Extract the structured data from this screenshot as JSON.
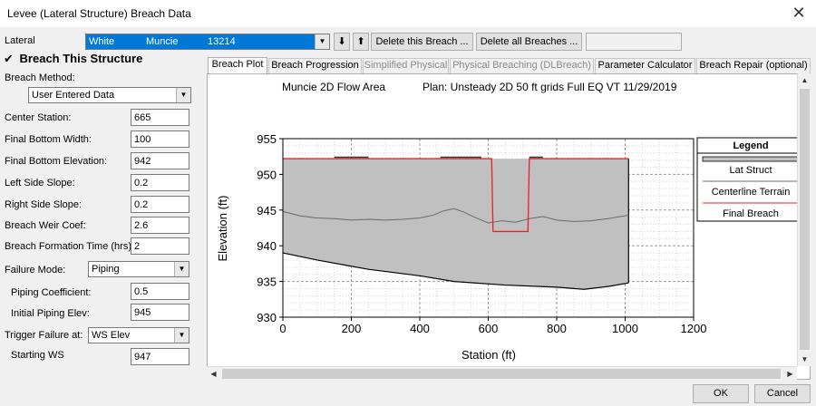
{
  "window": {
    "title": "Levee (Lateral Structure) Breach Data",
    "close_glyph": "✕"
  },
  "lateral": {
    "label": "Lateral",
    "river": "White",
    "reach": "Muncie",
    "station": "13214",
    "down_glyph": "⬇",
    "up_glyph": "⬆",
    "delete_this": "Delete this Breach ...",
    "delete_all": "Delete all Breaches ..."
  },
  "breach": {
    "checkbox_glyph": "✔",
    "checkbox_label": "Breach This Structure",
    "method_label": "Breach Method:",
    "method_value": "User Entered Data",
    "fields": [
      {
        "label": "Center Station:",
        "value": "665"
      },
      {
        "label": "Final Bottom Width:",
        "value": "100"
      },
      {
        "label": "Final Bottom Elevation:",
        "value": "942"
      },
      {
        "label": "Left Side Slope:",
        "value": "0.2"
      },
      {
        "label": "Right Side Slope:",
        "value": "0.2"
      },
      {
        "label": "Breach Weir Coef:",
        "value": "2.6"
      },
      {
        "label": "Breach Formation Time (hrs)",
        "value": "2"
      }
    ],
    "failure_mode_label": "Failure Mode:",
    "failure_mode_value": "Piping",
    "piping_coef_label": "Piping Coefficient:",
    "piping_coef_value": "0.5",
    "initial_piping_label": "Initial Piping Elev:",
    "initial_piping_value": "945",
    "trigger_label": "Trigger Failure at:",
    "trigger_value": "WS Elev",
    "starting_ws_label": "Starting WS",
    "starting_ws_value": "947"
  },
  "tabs": [
    {
      "label": "Breach Plot",
      "state": "active"
    },
    {
      "label": "Breach Progression",
      "state": "normal"
    },
    {
      "label": "Simplified Physical",
      "state": "disabled"
    },
    {
      "label": "Physical Breaching (DLBreach)",
      "state": "disabled"
    },
    {
      "label": "Parameter Calculator",
      "state": "normal"
    },
    {
      "label": "Breach Repair (optional)",
      "state": "normal"
    }
  ],
  "buttons": {
    "ok": "OK",
    "cancel": "Cancel"
  },
  "icons": {
    "dropdown": "chevron-down-icon",
    "arrow_up": "arrow-up-icon",
    "arrow_down": "arrow-down-icon",
    "arrow_left": "arrow-left-icon",
    "arrow_right": "arrow-right-icon"
  },
  "colors": {
    "selection": "#0078d7",
    "lat_struct_fill": "#c0c0c0",
    "final_breach": "#e8202a",
    "terrain": "#6a6a6a"
  },
  "chart_data": {
    "type": "area",
    "header_left": "Muncie 2D Flow Area",
    "header_right": "Plan: Unsteady  2D 50 ft grids Full EQ VT     11/29/2019",
    "xlabel": "Station (ft)",
    "ylabel": "Elevation (ft)",
    "xlim": [
      0,
      1200
    ],
    "ylim": [
      930,
      955
    ],
    "x_ticks": [
      0,
      200,
      400,
      600,
      800,
      1000,
      1200
    ],
    "y_ticks": [
      930,
      935,
      940,
      945,
      950,
      955
    ],
    "grid": true,
    "legend_title": "Legend",
    "legend_position": "right",
    "series": [
      {
        "name": "Lat Struct",
        "top": [
          [
            0,
            952.2
          ],
          [
            1010,
            952.2
          ]
        ],
        "bottom": [
          [
            0,
            939
          ],
          [
            100,
            938
          ],
          [
            250,
            936.7
          ],
          [
            400,
            935.8
          ],
          [
            500,
            935
          ],
          [
            650,
            934.5
          ],
          [
            800,
            934.2
          ],
          [
            880,
            933.9
          ],
          [
            950,
            934.3
          ],
          [
            1010,
            934.8
          ]
        ]
      },
      {
        "name": "Centerline Terrain",
        "points": [
          [
            0,
            944.8
          ],
          [
            50,
            944.2
          ],
          [
            100,
            943.9
          ],
          [
            150,
            943.8
          ],
          [
            200,
            943.6
          ],
          [
            250,
            943.7
          ],
          [
            300,
            943.6
          ],
          [
            350,
            943.7
          ],
          [
            400,
            943.9
          ],
          [
            440,
            944.3
          ],
          [
            470,
            944.9
          ],
          [
            500,
            945.2
          ],
          [
            530,
            944.7
          ],
          [
            560,
            944.0
          ],
          [
            600,
            943.2
          ],
          [
            640,
            943.5
          ],
          [
            680,
            943.3
          ],
          [
            720,
            943.8
          ],
          [
            760,
            944.1
          ],
          [
            800,
            943.6
          ],
          [
            850,
            943.4
          ],
          [
            900,
            943.5
          ],
          [
            950,
            943.8
          ],
          [
            1000,
            944.2
          ],
          [
            1010,
            944.3
          ]
        ]
      },
      {
        "name": "Final Breach",
        "points": [
          [
            0,
            952.2
          ],
          [
            610,
            952.2
          ],
          [
            614,
            942
          ],
          [
            716,
            942
          ],
          [
            720,
            952.2
          ],
          [
            1010,
            952.2
          ]
        ]
      }
    ],
    "crest_marks": [
      [
        150,
        250,
        952.4
      ],
      [
        460,
        580,
        952.4
      ],
      [
        720,
        760,
        952.4
      ]
    ]
  }
}
